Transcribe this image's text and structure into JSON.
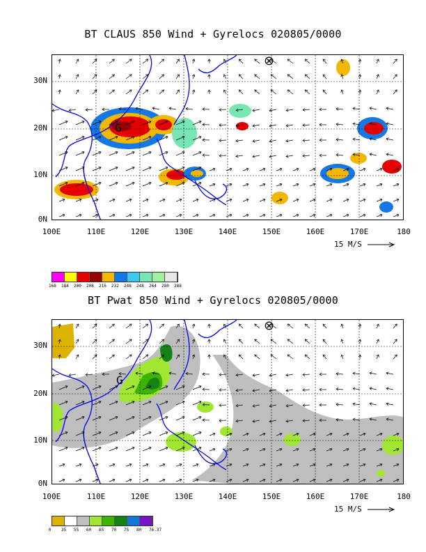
{
  "panel1": {
    "title": "BT CLAUS 850 Wind + Gyrelocs 020805/0000",
    "legend_labels": [
      "168",
      "184",
      "200",
      "208",
      "216",
      "232",
      "248",
      "248",
      "264",
      "280",
      "288"
    ],
    "legend_colors": [
      "#ff00ff",
      "#ffff00",
      "#e60000",
      "#990000",
      "#f2b800",
      "#1478e6",
      "#3cc8f0",
      "#78e6b4",
      "#a0f0a0",
      "#e6e6e6"
    ]
  },
  "panel2": {
    "title": "BT Pwat 850 Wind + Gyrelocs 020805/0000",
    "legend_labels": [
      "0",
      "35",
      "55",
      "60",
      "65",
      "70",
      "75",
      "80",
      "76.37"
    ],
    "legend_colors": [
      "#dcb400",
      "#ffffff",
      "#bebebe",
      "#a0e632",
      "#3cb400",
      "#148214",
      "#1478d2",
      "#7814c8"
    ]
  },
  "axes": {
    "lat_labels": [
      "30N",
      "20N",
      "10N",
      "0N"
    ],
    "lon_labels": [
      "100E",
      "110E",
      "120E",
      "130E",
      "140E",
      "150E",
      "160E",
      "170E",
      "180"
    ],
    "scale_label": "15 M/S"
  },
  "markers": {
    "storm_symbol": "⊗",
    "gyre_symbol": "G"
  }
}
